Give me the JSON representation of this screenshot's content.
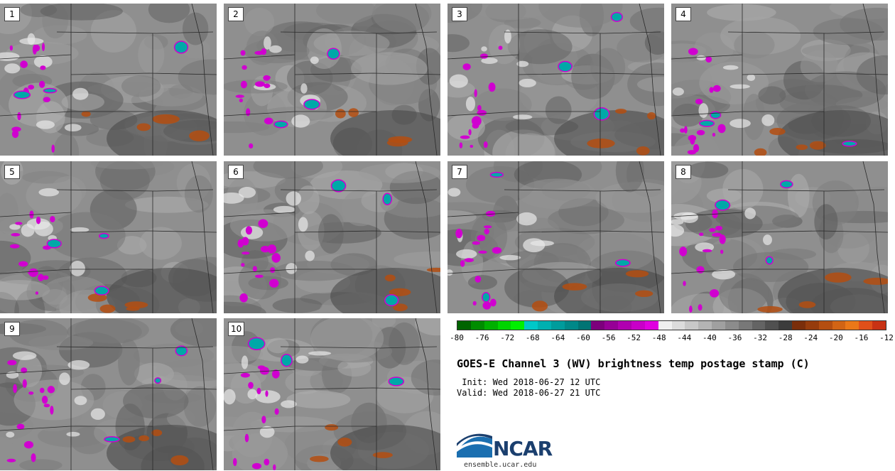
{
  "panels": [
    "1",
    "2",
    "3",
    "4",
    "5",
    "6",
    "7",
    "8",
    "9",
    "10"
  ],
  "colorbar": {
    "colors": [
      "#006400",
      "#008c00",
      "#00b000",
      "#00d400",
      "#00f000",
      "#00c8c8",
      "#00b0b0",
      "#009c9c",
      "#008888",
      "#007474",
      "#7c007c",
      "#960096",
      "#b000b0",
      "#c800c8",
      "#e000e0",
      "#f0f0f0",
      "#dcdcdc",
      "#c8c8c8",
      "#b4b4b4",
      "#a0a0a0",
      "#8c8c8c",
      "#787878",
      "#646464",
      "#505050",
      "#3c3c3c",
      "#7a2e0a",
      "#963c0c",
      "#b44e10",
      "#d26414",
      "#eb7818",
      "#e0501a",
      "#c83214"
    ],
    "ticks": [
      "-80",
      "-76",
      "-72",
      "-68",
      "-64",
      "-60",
      "-56",
      "-52",
      "-48",
      "-44",
      "-40",
      "-36",
      "-32",
      "-28",
      "-24",
      "-20",
      "-16",
      "-12"
    ]
  },
  "title": "GOES-E Channel 3 (WV) brightness temp postage stamp (C)",
  "init": " Init: Wed 2018-06-27 12 UTC",
  "valid": "Valid: Wed 2018-06-27 21 UTC",
  "logo": {
    "name": "NCAR",
    "url": "ensemble.ucar.edu"
  }
}
